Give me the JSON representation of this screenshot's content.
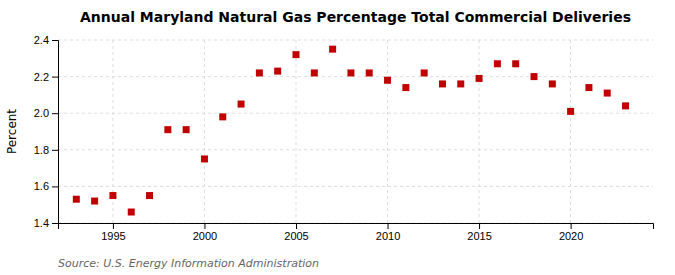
{
  "chart_data": {
    "type": "scatter",
    "title": "Annual Maryland Natural Gas Percentage Total Commercial Deliveries",
    "y_label": "Percent",
    "annotations": [
      "Source: U.S. Energy Information Administration"
    ],
    "x": [
      1993,
      1994,
      1995,
      1996,
      1997,
      1998,
      1999,
      2000,
      2001,
      2002,
      2003,
      2004,
      2005,
      2006,
      2007,
      2008,
      2009,
      2010,
      2011,
      2012,
      2013,
      2014,
      2015,
      2016,
      2017,
      2018,
      2019,
      2020,
      2021,
      2022,
      2023
    ],
    "values": [
      1.53,
      1.52,
      1.55,
      1.46,
      1.55,
      1.91,
      1.91,
      1.75,
      1.98,
      2.05,
      2.22,
      2.23,
      2.32,
      2.22,
      2.35,
      2.22,
      2.22,
      2.18,
      2.14,
      2.22,
      2.16,
      2.16,
      2.19,
      2.27,
      2.27,
      2.2,
      2.16,
      2.01,
      2.14,
      2.11,
      2.04
    ],
    "color": "#c00000",
    "marker": "square",
    "xlim": [
      1992.0,
      2024.5
    ],
    "xticks": [
      1995,
      2000,
      2005,
      2010,
      2015,
      2020
    ],
    "ylim": [
      1.4,
      2.4
    ],
    "yticks": [
      1.4,
      1.6,
      1.8,
      {
        "value": 2.0,
        "label": "2.0"
      },
      2.2,
      2.4
    ],
    "grid": true
  }
}
